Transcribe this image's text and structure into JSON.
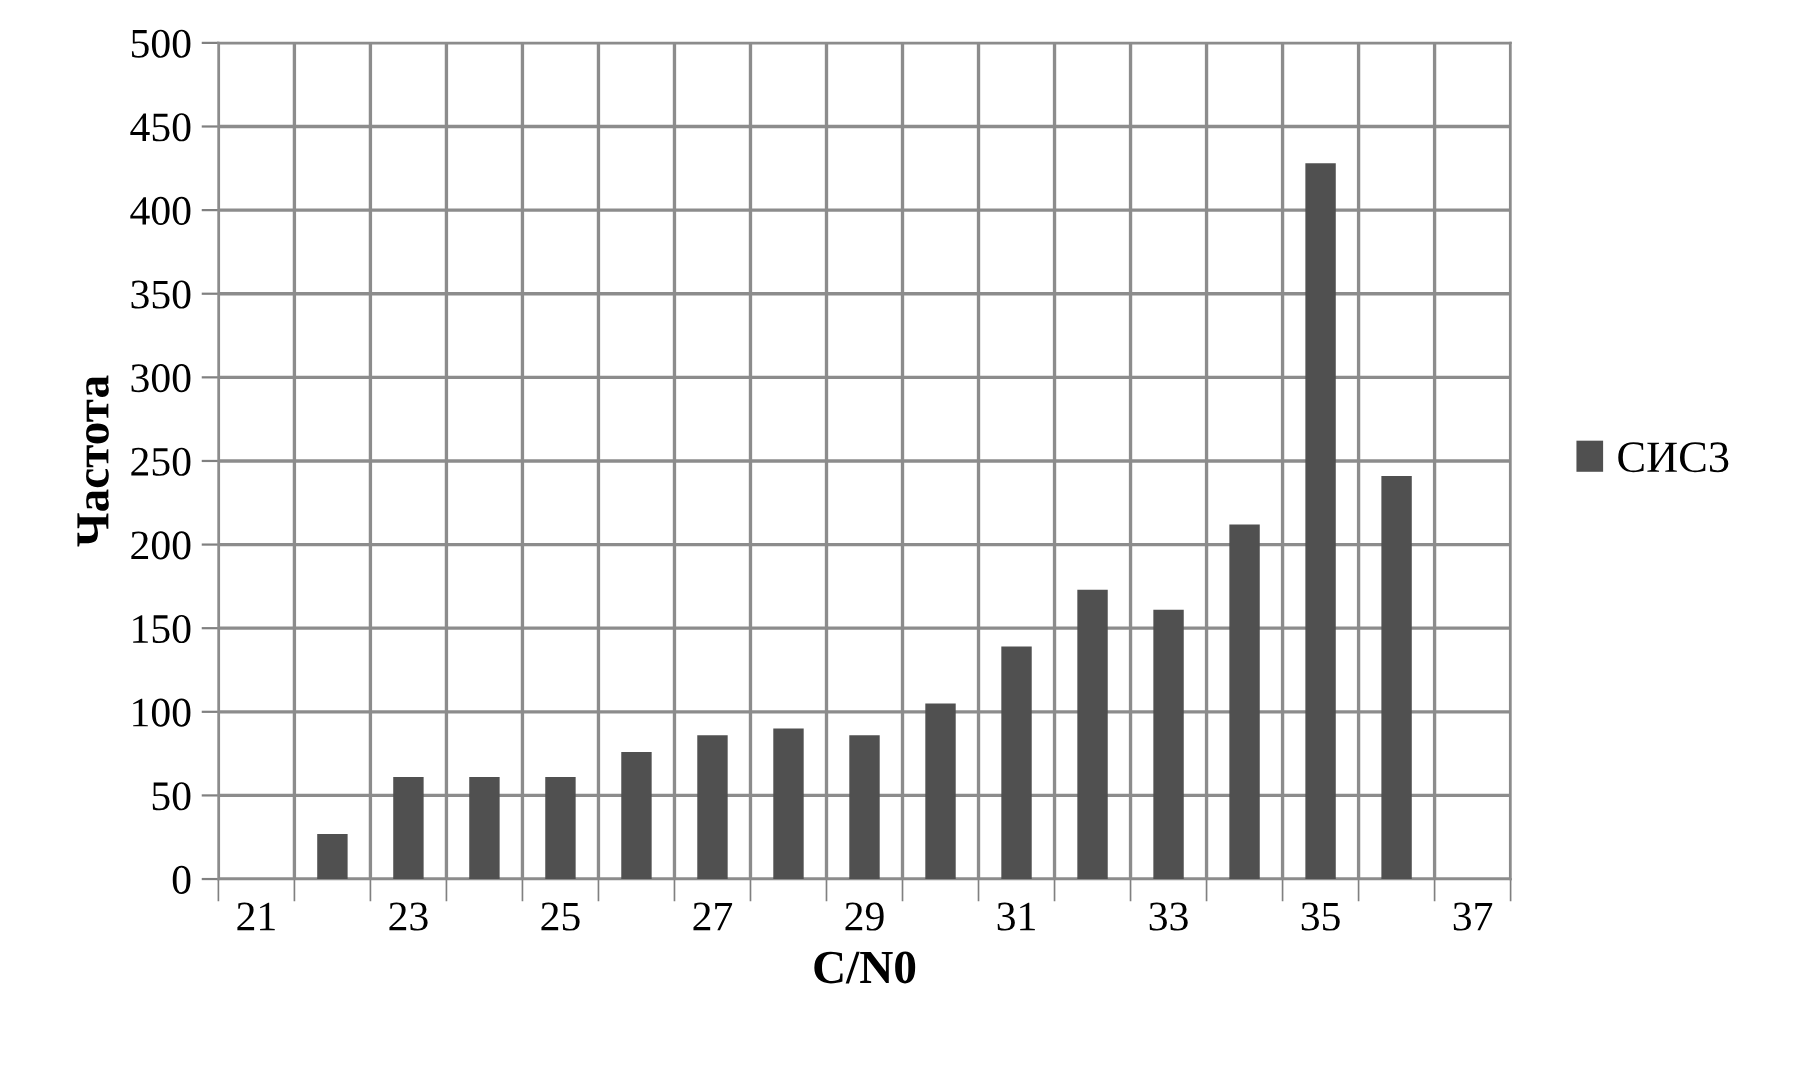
{
  "chart_data": {
    "type": "bar",
    "xlabel": "C/N0",
    "ylabel": "Частота",
    "categories": [
      "21",
      null,
      "23",
      null,
      "25",
      null,
      "27",
      null,
      "29",
      null,
      "31",
      null,
      "33",
      null,
      "35",
      null,
      "37"
    ],
    "series": [
      {
        "name": "СИС3",
        "color": "#505050",
        "values": [
          null,
          27,
          61,
          61,
          61,
          76,
          86,
          90,
          86,
          105,
          139,
          173,
          161,
          212,
          428,
          241,
          null
        ]
      }
    ],
    "ylim": [
      0,
      500
    ],
    "yticks": [
      0,
      50,
      100,
      150,
      200,
      250,
      300,
      350,
      400,
      450,
      500
    ],
    "grid": true,
    "legend": "right"
  }
}
